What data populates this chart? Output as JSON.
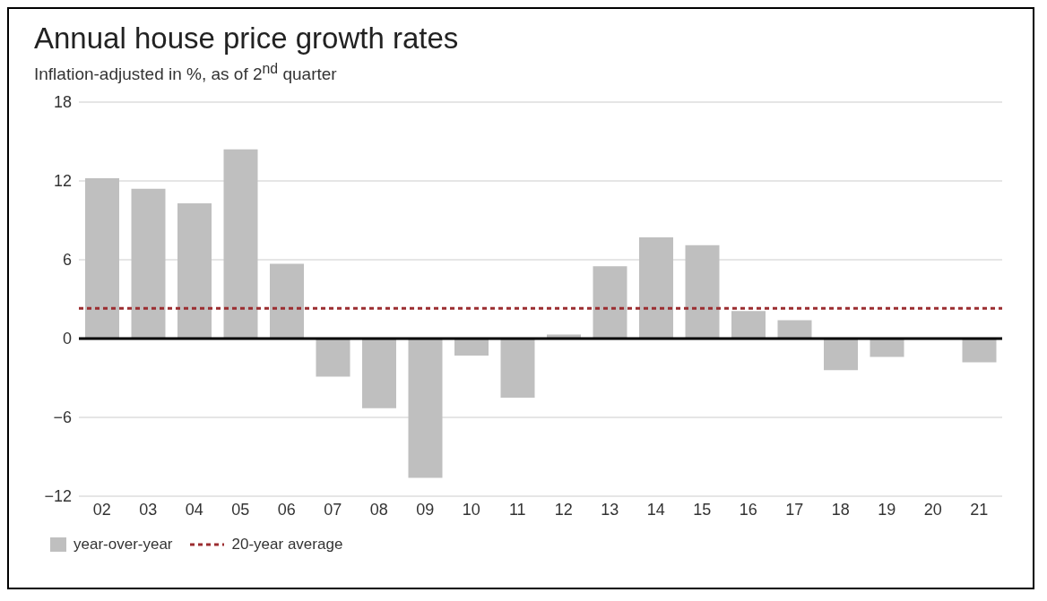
{
  "chart_data": {
    "type": "bar",
    "title": "Annual house price growth rates",
    "subtitle": "Inflation-adjusted in %, as of 2$^{nd}$ quarter",
    "categories": [
      "02",
      "03",
      "04",
      "05",
      "06",
      "07",
      "08",
      "09",
      "10",
      "11",
      "12",
      "13",
      "14",
      "15",
      "16",
      "17",
      "18",
      "19",
      "20",
      "21"
    ],
    "series": [
      {
        "name": "year-over-year",
        "color": "#bfbfbf",
        "values": [
          12.2,
          11.4,
          10.3,
          14.4,
          5.7,
          -2.9,
          -5.3,
          -10.6,
          -1.3,
          -4.5,
          0.3,
          5.5,
          7.7,
          7.1,
          2.1,
          1.4,
          -2.4,
          -1.4,
          0,
          -1.8
        ]
      }
    ],
    "ylim": [
      -12,
      18
    ],
    "yticks": [
      -12,
      -6,
      0,
      6,
      12,
      18
    ],
    "grid": "y",
    "legend": "bottom",
    "ref_lines": [
      {
        "axis": "y",
        "value": 0,
        "color": "#000000",
        "line_style": "solid"
      },
      {
        "axis": "y",
        "value": 2.3,
        "label": "20-year average",
        "color": "#9b2d30",
        "line_style": "dashed"
      }
    ]
  }
}
